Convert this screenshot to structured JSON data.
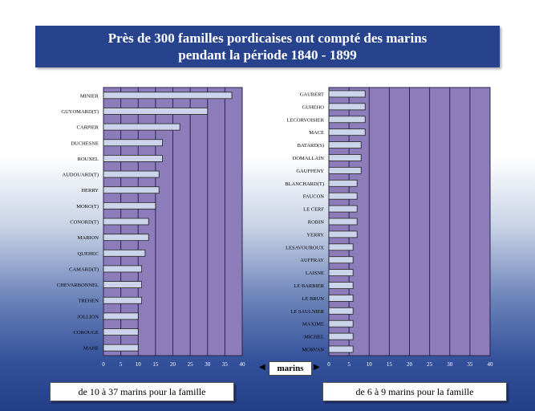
{
  "title": {
    "line1": "Près de 300 familles pordicaises ont compté des marins",
    "line2": "pendant la période 1840 - 1899"
  },
  "units_label": "marins",
  "colors": {
    "plot_bg": "#8c7cb9",
    "bar_fill": "#ccd4ec",
    "title_bg": "#27438e"
  },
  "chart_data": [
    {
      "type": "bar",
      "orientation": "horizontal",
      "categories": [
        "MINIER",
        "GUYOMARD(T)",
        "CARPIER",
        "DUCHESNE",
        "ROUXEL",
        "AUDOUARD(T)",
        "HERRY",
        "MORO(T)",
        "CONORD(T)",
        "MARION",
        "QUEHEC",
        "CAMARD(T)",
        "CHEVARBONNEL",
        "TREHEN",
        "JOLLION",
        "COROUGE",
        "MAHE"
      ],
      "values": [
        37,
        30,
        22,
        17,
        17,
        16,
        16,
        15,
        13,
        13,
        12,
        11,
        11,
        11,
        10,
        10,
        10
      ],
      "xlim": [
        0,
        40
      ],
      "xticks": [
        0,
        5,
        10,
        15,
        20,
        25,
        30,
        35,
        40
      ],
      "caption": "de 10 à 37 marins pour la famille"
    },
    {
      "type": "bar",
      "orientation": "horizontal",
      "categories": [
        "GAUBERT",
        "GUHEHO",
        "LECORVOISIER",
        "MACE",
        "BATARD(S)",
        "DOMALLAIN",
        "GAUFFENY",
        "BLANCHARD(T)",
        "FAUCON",
        "LE CERF",
        "ROBIN",
        "YERRY",
        "LESAVOUROUX",
        "AUFFRAY",
        "LAISNE",
        "LE BARBIER",
        "LE BRUN",
        "LE SAULNIER",
        "MAXIME",
        "MICHEL",
        "MORVAN"
      ],
      "values": [
        9,
        9,
        9,
        9,
        8,
        8,
        8,
        7,
        7,
        7,
        7,
        7,
        6,
        6,
        6,
        6,
        6,
        6,
        6,
        6,
        6
      ],
      "xlim": [
        0,
        40
      ],
      "xticks": [
        0,
        5,
        10,
        15,
        20,
        25,
        30,
        35,
        40
      ],
      "caption": "de 6 à 9 marins pour la famille"
    }
  ]
}
